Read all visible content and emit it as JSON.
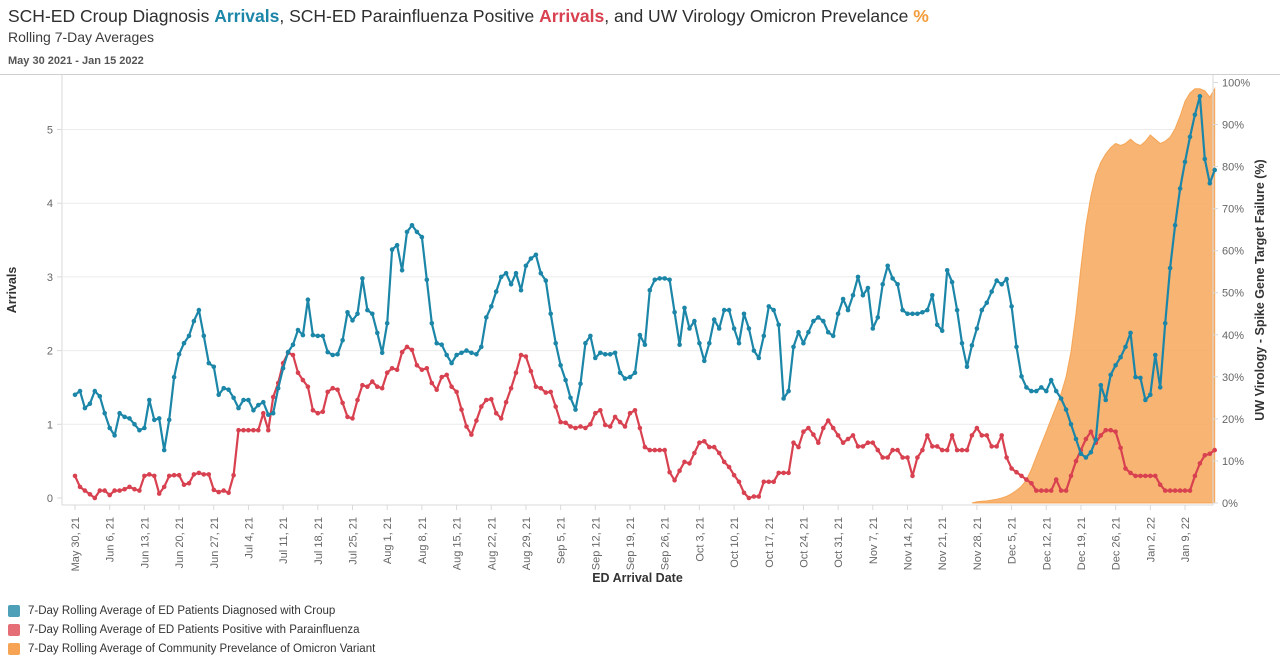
{
  "palette": {
    "teal_line": "#1c86a8",
    "red_line": "#d84150",
    "orange_fill": "#f7ac64",
    "orange_edge": "#f49b42",
    "teal_swatch": "#4e9fb8",
    "red_swatch": "#e56d76",
    "orange_swatch": "#f6a454",
    "title_accent_orange": "#f39c3d",
    "grid": "#ececec",
    "axis_line": "#d9d9d9",
    "tick_text": "#666666",
    "axis_title_text": "#333333"
  },
  "header": {
    "title_segments": [
      {
        "text": "SCH-ED Croup Diagnosis ",
        "color": "dark",
        "bold": false
      },
      {
        "text": "Arrivals",
        "color": "teal",
        "bold": true
      },
      {
        "text": ", SCH-ED Parainfluenza Positive ",
        "color": "dark",
        "bold": false
      },
      {
        "text": "Arrivals",
        "color": "red",
        "bold": true
      },
      {
        "text": ", and UW Virology Omicron Prevelance ",
        "color": "dark",
        "bold": false
      },
      {
        "text": "%",
        "color": "orange",
        "bold": true
      }
    ],
    "subtitle": "Rolling 7-Day Averages",
    "date_range": "May 30 2021 - Jan 15 2022"
  },
  "legend": {
    "items": [
      {
        "label": "7-Day Rolling Average of ED Patients Diagnosed with Croup",
        "color": "#4e9fb8"
      },
      {
        "label": "7-Day Rolling Average of ED Patients Positive with Parainfluenza",
        "color": "#e56d76"
      },
      {
        "label": "7-Day Rolling Average of Community Prevelance of Omicron Variant",
        "color": "#f6a454"
      }
    ]
  },
  "chart_data": {
    "type": "line",
    "title": "SCH-ED Croup Diagnosis Arrivals, SCH-ED Parainfluenza Positive Arrivals, and UW Virology Omicron Prevelance %",
    "subtitle": "Rolling 7-Day Averages",
    "date_note": "May 30 2021 - Jan 15 2022",
    "x": {
      "label": "ED Arrival Date",
      "start_date": "May 30, 2021",
      "total_days": 231,
      "tick_every_days": 7,
      "tick_labels": [
        "May 30, 21",
        "Jun 6, 21",
        "Jun 13, 21",
        "Jun 20, 21",
        "Jun 27, 21",
        "Jul 4, 21",
        "Jul 11, 21",
        "Jul 18, 21",
        "Jul 25, 21",
        "Aug 1, 21",
        "Aug 8, 21",
        "Aug 15, 21",
        "Aug 22, 21",
        "Aug 29, 21",
        "Sep 5, 21",
        "Sep 12, 21",
        "Sep 19, 21",
        "Sep 26, 21",
        "Oct 3, 21",
        "Oct 10, 21",
        "Oct 17, 21",
        "Oct 24, 21",
        "Oct 31, 21",
        "Nov 7, 21",
        "Nov 14, 21",
        "Nov 21, 21",
        "Nov 28, 21",
        "Dec 5, 21",
        "Dec 12, 21",
        "Dec 19, 21",
        "Dec 26, 21",
        "Jan 2, 22",
        "Jan 9, 22"
      ]
    },
    "y_left": {
      "label": "Arrivals",
      "ticks": [
        0,
        1,
        2,
        3,
        4,
        5
      ],
      "range": [
        0,
        5.7
      ]
    },
    "y_right": {
      "label": "UW Virology - Spike Gene Target Failure (%)",
      "ticks": [
        "0%",
        "10%",
        "20%",
        "30%",
        "40%",
        "50%",
        "60%",
        "70%",
        "80%",
        "90%",
        "100%"
      ],
      "range": [
        0,
        100
      ]
    },
    "grid": true,
    "legend_position": "bottom-left",
    "series": [
      {
        "name": "7-Day Rolling Average of ED Patients Diagnosed with Croup",
        "type": "line",
        "axis": "left",
        "color": "#1c86a8",
        "values": [
          1.4,
          1.45,
          1.22,
          1.28,
          1.45,
          1.38,
          1.15,
          0.95,
          0.85,
          1.15,
          1.1,
          1.08,
          1.0,
          0.92,
          0.95,
          1.33,
          1.06,
          1.08,
          0.65,
          1.06,
          1.64,
          1.95,
          2.1,
          2.2,
          2.4,
          2.55,
          2.2,
          1.83,
          1.78,
          1.4,
          1.49,
          1.47,
          1.36,
          1.22,
          1.33,
          1.33,
          1.19,
          1.26,
          1.3,
          1.13,
          1.15,
          1.49,
          1.76,
          1.98,
          2.08,
          2.28,
          2.21,
          2.69,
          2.21,
          2.2,
          2.2,
          1.98,
          1.94,
          1.95,
          2.14,
          2.52,
          2.41,
          2.5,
          2.98,
          2.55,
          2.5,
          2.24,
          1.97,
          2.37,
          3.37,
          3.43,
          3.09,
          3.61,
          3.7,
          3.61,
          3.54,
          2.96,
          2.37,
          2.1,
          2.08,
          1.94,
          1.83,
          1.94,
          1.97,
          2.0,
          1.97,
          1.95,
          2.05,
          2.45,
          2.6,
          2.8,
          3.0,
          3.05,
          2.9,
          3.05,
          2.82,
          3.15,
          3.25,
          3.3,
          3.05,
          2.95,
          2.5,
          2.1,
          1.8,
          1.6,
          1.36,
          1.2,
          1.55,
          2.1,
          2.2,
          1.9,
          1.97,
          1.95,
          1.95,
          1.97,
          1.7,
          1.62,
          1.64,
          1.7,
          2.21,
          2.08,
          2.82,
          2.96,
          2.98,
          2.98,
          2.96,
          2.52,
          2.08,
          2.58,
          2.3,
          2.4,
          2.1,
          1.86,
          2.1,
          2.42,
          2.3,
          2.55,
          2.55,
          2.3,
          2.1,
          2.5,
          2.3,
          2.0,
          1.9,
          2.2,
          2.6,
          2.55,
          2.35,
          1.35,
          1.45,
          2.05,
          2.25,
          2.1,
          2.25,
          2.4,
          2.45,
          2.4,
          2.25,
          2.2,
          2.5,
          2.7,
          2.55,
          2.75,
          3.0,
          2.75,
          2.85,
          2.3,
          2.45,
          2.9,
          3.15,
          2.98,
          2.9,
          2.55,
          2.5,
          2.5,
          2.5,
          2.52,
          2.55,
          2.75,
          2.35,
          2.27,
          3.09,
          2.93,
          2.55,
          2.1,
          1.78,
          2.07,
          2.3,
          2.55,
          2.65,
          2.8,
          2.95,
          2.9,
          2.97,
          2.6,
          2.05,
          1.65,
          1.5,
          1.45,
          1.45,
          1.5,
          1.45,
          1.6,
          1.45,
          1.35,
          1.2,
          1.0,
          0.8,
          0.6,
          0.55,
          0.62,
          0.79,
          1.53,
          1.33,
          1.67,
          1.8,
          1.91,
          2.05,
          2.24,
          1.64,
          1.63,
          1.33,
          1.4,
          1.94,
          1.5,
          2.37,
          3.12,
          3.7,
          4.2,
          4.56,
          4.9,
          5.2,
          5.45,
          4.6,
          4.27,
          4.45
        ]
      },
      {
        "name": "7-Day Rolling Average of ED Patients Positive with Parainfluenza",
        "type": "line",
        "axis": "left",
        "color": "#d84150",
        "values": [
          0.3,
          0.15,
          0.1,
          0.05,
          0.0,
          0.1,
          0.1,
          0.04,
          0.1,
          0.1,
          0.12,
          0.15,
          0.12,
          0.1,
          0.3,
          0.32,
          0.3,
          0.06,
          0.15,
          0.3,
          0.31,
          0.31,
          0.18,
          0.2,
          0.32,
          0.34,
          0.32,
          0.32,
          0.11,
          0.08,
          0.1,
          0.07,
          0.31,
          0.92,
          0.92,
          0.92,
          0.92,
          0.92,
          1.15,
          0.92,
          1.37,
          1.56,
          1.83,
          1.97,
          1.94,
          1.7,
          1.6,
          1.51,
          1.19,
          1.15,
          1.17,
          1.44,
          1.49,
          1.47,
          1.29,
          1.1,
          1.08,
          1.33,
          1.53,
          1.51,
          1.58,
          1.51,
          1.49,
          1.7,
          1.76,
          1.74,
          1.98,
          2.05,
          2.01,
          1.8,
          1.74,
          1.76,
          1.56,
          1.47,
          1.64,
          1.67,
          1.51,
          1.44,
          1.2,
          0.97,
          0.86,
          1.05,
          1.24,
          1.33,
          1.34,
          1.15,
          1.08,
          1.3,
          1.49,
          1.7,
          1.94,
          1.92,
          1.72,
          1.51,
          1.49,
          1.43,
          1.44,
          1.24,
          1.03,
          1.02,
          0.97,
          0.95,
          0.97,
          0.95,
          1.0,
          1.15,
          1.19,
          0.99,
          0.97,
          1.1,
          1.03,
          0.97,
          1.15,
          1.19,
          0.95,
          0.69,
          0.65,
          0.65,
          0.65,
          0.65,
          0.35,
          0.24,
          0.37,
          0.49,
          0.47,
          0.61,
          0.75,
          0.77,
          0.69,
          0.69,
          0.61,
          0.49,
          0.42,
          0.31,
          0.22,
          0.07,
          0.0,
          0.02,
          0.02,
          0.22,
          0.22,
          0.22,
          0.34,
          0.34,
          0.34,
          0.75,
          0.69,
          0.9,
          0.95,
          0.86,
          0.75,
          0.95,
          1.05,
          0.95,
          0.85,
          0.75,
          0.8,
          0.85,
          0.7,
          0.7,
          0.75,
          0.75,
          0.65,
          0.55,
          0.55,
          0.65,
          0.65,
          0.55,
          0.55,
          0.3,
          0.55,
          0.65,
          0.85,
          0.7,
          0.7,
          0.65,
          0.65,
          0.85,
          0.65,
          0.65,
          0.65,
          0.85,
          0.95,
          0.85,
          0.85,
          0.7,
          0.7,
          0.85,
          0.55,
          0.4,
          0.35,
          0.3,
          0.25,
          0.2,
          0.1,
          0.1,
          0.1,
          0.1,
          0.25,
          0.1,
          0.1,
          0.3,
          0.5,
          0.65,
          0.8,
          0.9,
          0.75,
          0.85,
          0.92,
          0.92,
          0.9,
          0.68,
          0.4,
          0.34,
          0.3,
          0.3,
          0.3,
          0.3,
          0.3,
          0.18,
          0.1,
          0.1,
          0.1,
          0.1,
          0.1,
          0.1,
          0.3,
          0.47,
          0.58,
          0.6,
          0.65
        ]
      },
      {
        "name": "7-Day Rolling Average of Community Prevelance of Omicron Variant",
        "type": "area",
        "axis": "right",
        "color": "#f7ac64",
        "values": [
          0,
          0,
          0,
          0,
          0,
          0,
          0,
          0,
          0,
          0,
          0,
          0,
          0,
          0,
          0,
          0,
          0,
          0,
          0,
          0,
          0,
          0,
          0,
          0,
          0,
          0,
          0,
          0,
          0,
          0,
          0,
          0,
          0,
          0,
          0,
          0,
          0,
          0,
          0,
          0,
          0,
          0,
          0,
          0,
          0,
          0,
          0,
          0,
          0,
          0,
          0,
          0,
          0,
          0,
          0,
          0,
          0,
          0,
          0,
          0,
          0,
          0,
          0,
          0,
          0,
          0,
          0,
          0,
          0,
          0,
          0,
          0,
          0,
          0,
          0,
          0,
          0,
          0,
          0,
          0,
          0,
          0,
          0,
          0,
          0,
          0,
          0,
          0,
          0,
          0,
          0,
          0,
          0,
          0,
          0,
          0,
          0,
          0,
          0,
          0,
          0,
          0,
          0,
          0,
          0,
          0,
          0,
          0,
          0,
          0,
          0,
          0,
          0,
          0,
          0,
          0,
          0,
          0,
          0,
          0,
          0,
          0,
          0,
          0,
          0,
          0,
          0,
          0,
          0,
          0,
          0,
          0,
          0,
          0,
          0,
          0,
          0,
          0,
          0,
          0,
          0,
          0,
          0,
          0,
          0,
          0,
          0,
          0,
          0,
          0,
          0,
          0,
          0,
          0,
          0,
          0,
          0,
          0,
          0,
          0,
          0,
          0,
          0,
          0,
          0,
          0,
          0,
          0,
          0,
          0,
          0,
          0,
          0,
          0,
          0,
          0,
          0,
          0,
          0,
          0,
          0,
          0,
          0.3,
          0.4,
          0.5,
          0.7,
          0.9,
          1.2,
          1.6,
          2.2,
          3,
          4,
          5.5,
          8,
          11,
          14,
          17,
          20,
          23,
          26,
          30,
          36,
          45,
          56,
          66,
          73,
          78,
          81,
          83,
          84.5,
          85.5,
          85,
          85.5,
          86.5,
          85.5,
          85,
          86,
          87.5,
          86.5,
          85.5,
          86,
          87,
          89,
          92,
          95.5,
          97.5,
          98.5,
          98.5,
          98,
          96.5,
          98.5
        ]
      }
    ]
  }
}
